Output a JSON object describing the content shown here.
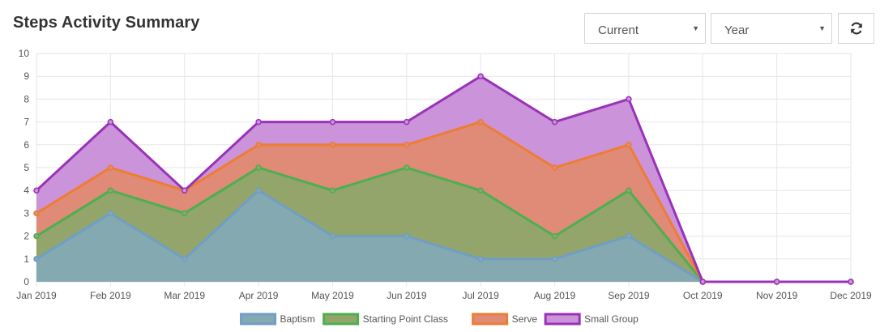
{
  "header": {
    "title": "Steps Activity Summary",
    "period_select": "Current",
    "range_select": "Year",
    "refresh_icon": "refresh-icon"
  },
  "chart_data": {
    "type": "area",
    "stacked": true,
    "title": "",
    "xlabel": "",
    "ylabel": "",
    "ylim": [
      0,
      10
    ],
    "yticks": [
      0,
      1,
      2,
      3,
      4,
      5,
      6,
      7,
      8,
      9,
      10
    ],
    "categories": [
      "Jan 2019",
      "Feb 2019",
      "Mar 2019",
      "Apr 2019",
      "May 2019",
      "Jun 2019",
      "Jul 2019",
      "Aug 2019",
      "Sep 2019",
      "Oct 2019",
      "Nov 2019",
      "Dec 2019"
    ],
    "series": [
      {
        "name": "Baptism",
        "values": [
          1,
          3,
          1,
          4,
          2,
          2,
          1,
          1,
          2,
          0,
          0,
          0
        ],
        "color": "#6f9ec6",
        "fill": "#84a9b1"
      },
      {
        "name": "Starting Point Class",
        "values": [
          1,
          1,
          2,
          1,
          2,
          3,
          3,
          1,
          2,
          0,
          0,
          0
        ],
        "color": "#4caf50",
        "fill": "#93a56a"
      },
      {
        "name": "Serve",
        "values": [
          1,
          1,
          1,
          1,
          2,
          1,
          3,
          3,
          2,
          0,
          0,
          0
        ],
        "color": "#ed7d31",
        "fill": "#e08a78"
      },
      {
        "name": "Small Group",
        "values": [
          1,
          2,
          0,
          1,
          1,
          1,
          2,
          2,
          2,
          0,
          0,
          0
        ],
        "color": "#9932b8",
        "fill": "#cb93d9"
      }
    ],
    "legend": {
      "position": "bottom"
    },
    "grid": true
  }
}
